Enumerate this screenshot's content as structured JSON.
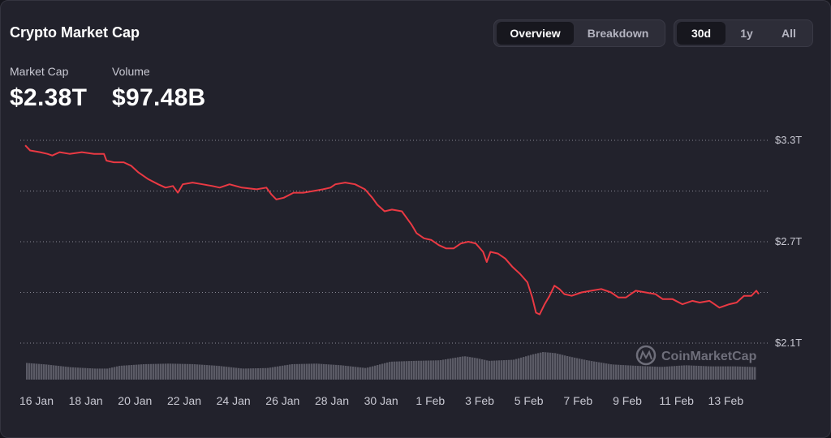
{
  "header": {
    "title": "Crypto Market Cap",
    "stats": [
      {
        "label": "Market Cap",
        "value": "$2.38T"
      },
      {
        "label": "Volume",
        "value": "$97.48B"
      }
    ]
  },
  "view_toggle": {
    "options": [
      "Overview",
      "Breakdown"
    ],
    "selected": "Overview"
  },
  "range_toggle": {
    "options": [
      "30d",
      "1y",
      "All"
    ],
    "selected": "30d"
  },
  "watermark": {
    "text": "CoinMarketCap"
  },
  "colors": {
    "line": "#ea3943",
    "volume": "#5b5b66",
    "grid": "#8a8a96",
    "background": "#22222c"
  },
  "chart_data": {
    "type": "line",
    "title": "Crypto Market Cap",
    "y_unit": "T (trillion USD)",
    "ylim": [
      2.1,
      3.3
    ],
    "y_gridlines": [
      2.1,
      2.4,
      2.7,
      3.0,
      3.3
    ],
    "y_tick_labels": [
      "$3.3T",
      "$2.7T",
      "$2.1T"
    ],
    "x_tick_labels": [
      "16 Jan",
      "18 Jan",
      "20 Jan",
      "22 Jan",
      "24 Jan",
      "26 Jan",
      "28 Jan",
      "30 Jan",
      "1 Feb",
      "3 Feb",
      "5 Feb",
      "7 Feb",
      "9 Feb",
      "11 Feb",
      "13 Feb"
    ],
    "x_range_days": [
      0,
      30
    ],
    "grid": "horizontal dotted",
    "legend": "none",
    "series": [
      {
        "name": "Market Cap",
        "points": [
          [
            0.2,
            3.27
          ],
          [
            0.4,
            3.24
          ],
          [
            0.8,
            3.23
          ],
          [
            1.1,
            3.22
          ],
          [
            1.3,
            3.21
          ],
          [
            1.6,
            3.23
          ],
          [
            2.0,
            3.22
          ],
          [
            2.5,
            3.23
          ],
          [
            3.0,
            3.22
          ],
          [
            3.4,
            3.22
          ],
          [
            3.5,
            3.18
          ],
          [
            3.8,
            3.17
          ],
          [
            4.2,
            3.17
          ],
          [
            4.5,
            3.15
          ],
          [
            4.8,
            3.11
          ],
          [
            5.2,
            3.07
          ],
          [
            5.6,
            3.04
          ],
          [
            5.9,
            3.02
          ],
          [
            6.2,
            3.03
          ],
          [
            6.4,
            2.99
          ],
          [
            6.6,
            3.04
          ],
          [
            7.0,
            3.05
          ],
          [
            7.4,
            3.04
          ],
          [
            7.8,
            3.03
          ],
          [
            8.1,
            3.02
          ],
          [
            8.5,
            3.04
          ],
          [
            9.0,
            3.02
          ],
          [
            9.6,
            3.01
          ],
          [
            10.0,
            3.02
          ],
          [
            10.2,
            2.98
          ],
          [
            10.4,
            2.95
          ],
          [
            10.7,
            2.96
          ],
          [
            11.1,
            2.99
          ],
          [
            11.5,
            2.99
          ],
          [
            11.9,
            3.0
          ],
          [
            12.3,
            3.01
          ],
          [
            12.6,
            3.02
          ],
          [
            12.8,
            3.04
          ],
          [
            13.2,
            3.05
          ],
          [
            13.6,
            3.04
          ],
          [
            14.0,
            3.01
          ],
          [
            14.3,
            2.96
          ],
          [
            14.5,
            2.92
          ],
          [
            14.8,
            2.88
          ],
          [
            15.1,
            2.89
          ],
          [
            15.5,
            2.88
          ],
          [
            15.7,
            2.84
          ],
          [
            15.9,
            2.8
          ],
          [
            16.1,
            2.75
          ],
          [
            16.4,
            2.72
          ],
          [
            16.7,
            2.71
          ],
          [
            17.0,
            2.68
          ],
          [
            17.3,
            2.66
          ],
          [
            17.6,
            2.66
          ],
          [
            17.9,
            2.69
          ],
          [
            18.2,
            2.7
          ],
          [
            18.5,
            2.69
          ],
          [
            18.8,
            2.64
          ],
          [
            18.95,
            2.58
          ],
          [
            19.1,
            2.64
          ],
          [
            19.4,
            2.63
          ],
          [
            19.7,
            2.6
          ],
          [
            20.0,
            2.55
          ],
          [
            20.3,
            2.51
          ],
          [
            20.6,
            2.46
          ],
          [
            20.8,
            2.37
          ],
          [
            20.95,
            2.28
          ],
          [
            21.1,
            2.27
          ],
          [
            21.3,
            2.33
          ],
          [
            21.5,
            2.38
          ],
          [
            21.7,
            2.44
          ],
          [
            21.9,
            2.42
          ],
          [
            22.1,
            2.39
          ],
          [
            22.4,
            2.38
          ],
          [
            22.8,
            2.4
          ],
          [
            23.2,
            2.41
          ],
          [
            23.6,
            2.42
          ],
          [
            24.0,
            2.4
          ],
          [
            24.3,
            2.37
          ],
          [
            24.6,
            2.37
          ],
          [
            25.0,
            2.41
          ],
          [
            25.4,
            2.4
          ],
          [
            25.8,
            2.39
          ],
          [
            26.1,
            2.36
          ],
          [
            26.5,
            2.36
          ],
          [
            26.9,
            2.33
          ],
          [
            27.3,
            2.35
          ],
          [
            27.6,
            2.34
          ],
          [
            28.0,
            2.35
          ],
          [
            28.2,
            2.33
          ],
          [
            28.4,
            2.31
          ],
          [
            28.8,
            2.33
          ],
          [
            29.1,
            2.34
          ],
          [
            29.4,
            2.38
          ],
          [
            29.7,
            2.38
          ],
          [
            29.9,
            2.41
          ],
          [
            30.0,
            2.39
          ]
        ]
      },
      {
        "name": "Volume",
        "points": [
          [
            0.0,
            0.62
          ],
          [
            1.0,
            0.55
          ],
          [
            2.0,
            0.45
          ],
          [
            3.0,
            0.4
          ],
          [
            3.5,
            0.4
          ],
          [
            4.0,
            0.5
          ],
          [
            5.0,
            0.56
          ],
          [
            6.0,
            0.58
          ],
          [
            7.0,
            0.56
          ],
          [
            8.0,
            0.5
          ],
          [
            9.0,
            0.4
          ],
          [
            10.0,
            0.42
          ],
          [
            11.0,
            0.56
          ],
          [
            12.0,
            0.58
          ],
          [
            13.0,
            0.52
          ],
          [
            14.0,
            0.42
          ],
          [
            15.0,
            0.65
          ],
          [
            16.0,
            0.68
          ],
          [
            17.0,
            0.7
          ],
          [
            18.0,
            0.85
          ],
          [
            18.5,
            0.78
          ],
          [
            19.0,
            0.68
          ],
          [
            20.0,
            0.72
          ],
          [
            20.8,
            0.92
          ],
          [
            21.2,
            1.0
          ],
          [
            21.7,
            0.96
          ],
          [
            22.2,
            0.85
          ],
          [
            23.0,
            0.7
          ],
          [
            24.0,
            0.55
          ],
          [
            25.0,
            0.5
          ],
          [
            26.0,
            0.46
          ],
          [
            27.0,
            0.52
          ],
          [
            28.0,
            0.48
          ],
          [
            29.0,
            0.48
          ],
          [
            30.0,
            0.45
          ]
        ]
      }
    ]
  }
}
